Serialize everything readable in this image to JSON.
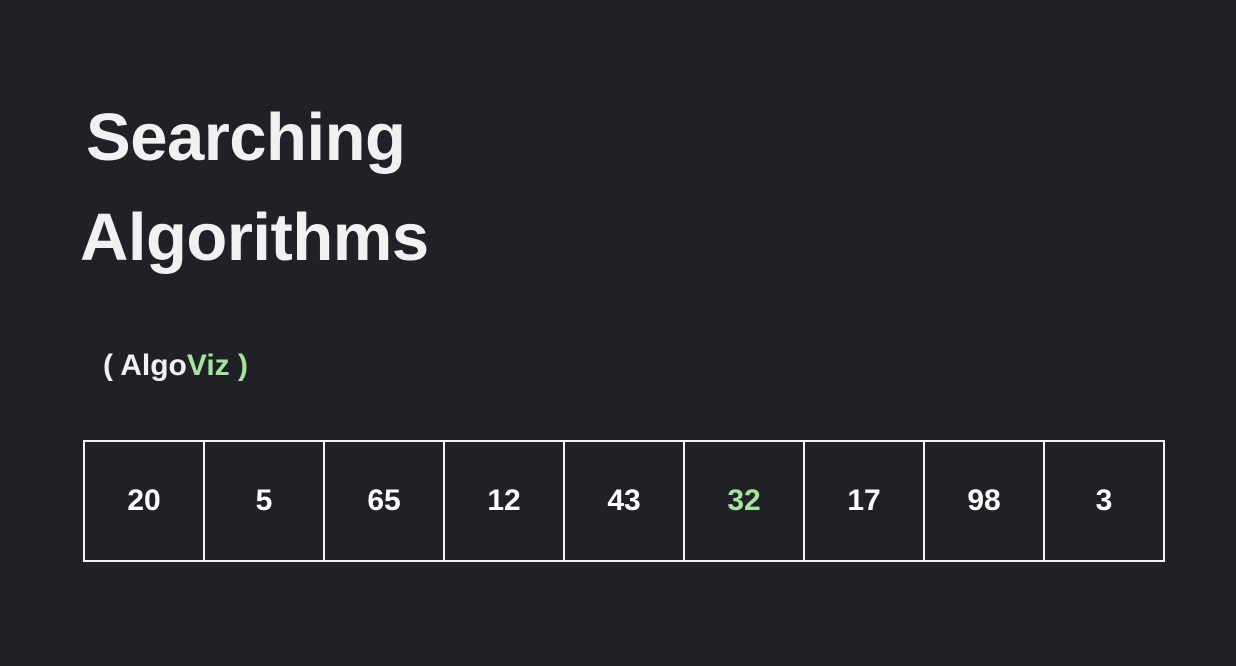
{
  "title": {
    "line1": "Searching",
    "line2": "Algorithms"
  },
  "subtitle": {
    "open": "( ",
    "brand_main": "Algo",
    "brand_accent": "Viz",
    "close": " )"
  },
  "colors": {
    "background": "#202127",
    "text": "#f1f1f1",
    "accent": "#a6e3a1",
    "border": "#f4f4f4"
  },
  "array": {
    "values": [
      "20",
      "5",
      "65",
      "12",
      "43",
      "32",
      "17",
      "98",
      "3"
    ],
    "highlighted_value": "32"
  }
}
